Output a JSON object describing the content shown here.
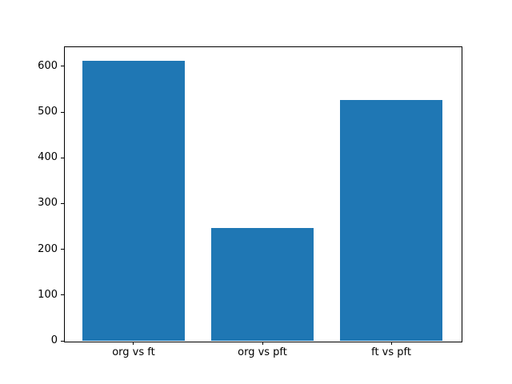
{
  "chart_data": {
    "type": "bar",
    "categories": [
      "org vs ft",
      "org vs pft",
      "ft vs pft"
    ],
    "values": [
      613,
      247,
      527
    ],
    "title": "",
    "xlabel": "",
    "ylabel": "",
    "ylim": [
      0,
      643.65
    ],
    "yticks": [
      0,
      100,
      200,
      300,
      400,
      500,
      600
    ],
    "bar_width_fraction": 0.8,
    "grid": false,
    "legend": null,
    "bar_color": "#1f77b4",
    "background_color": "#ffffff",
    "spine_color": "#000000",
    "tick_label_color": "#000000"
  }
}
